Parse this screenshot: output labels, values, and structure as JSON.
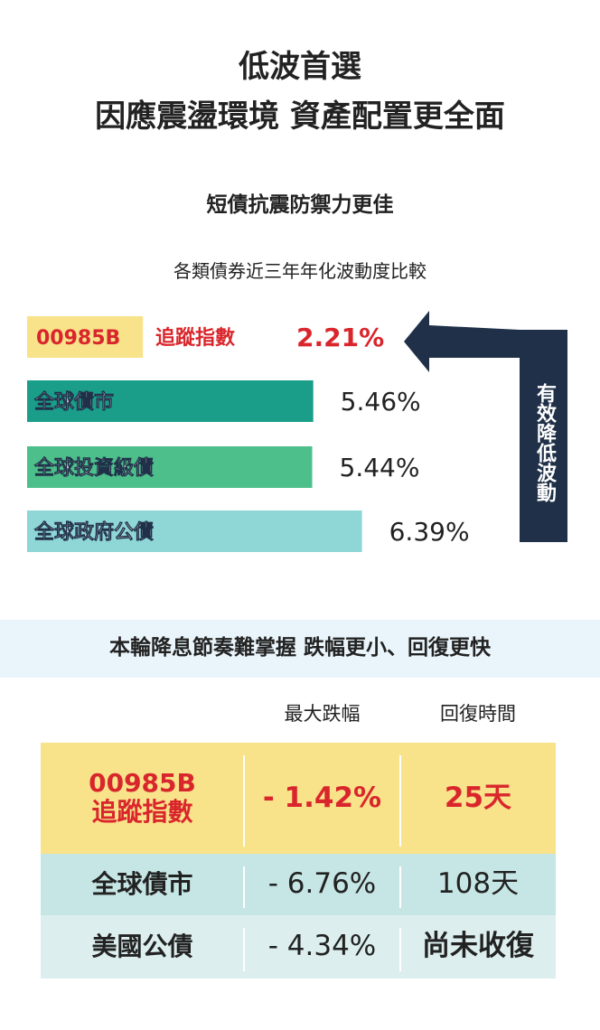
{
  "header": {
    "title_line1": "低波首選",
    "title_line2": "因應震盪環境  資產配置更全面"
  },
  "chart_data": {
    "type": "bar",
    "orientation": "horizontal",
    "title": "短債抗震防禦力更佳",
    "subtitle": "各類債券近三年年化波動度比較",
    "highlight_code": "00985B",
    "categories": [
      "追蹤指數",
      "全球債市",
      "全球投資級債",
      "全球政府公債"
    ],
    "values": [
      2.21,
      5.46,
      5.44,
      6.39
    ],
    "value_labels": [
      "2.21%",
      "5.46%",
      "5.44%",
      "6.39%"
    ],
    "colors": [
      "#f8e28a",
      "#1a9e8a",
      "#4cbf8a",
      "#8fd6d6"
    ],
    "annotation": "有效降低波動"
  },
  "table": {
    "title": "本輪降息節奏難掌握  跌幅更小、回復更快",
    "columns": [
      "最大跌幅",
      "回復時間"
    ],
    "rows": [
      [
        "00985B\n追蹤指數",
        "- 1.42%",
        "25天"
      ],
      [
        "全球債市",
        "- 6.76%",
        "108天"
      ],
      [
        "美國公債",
        "- 4.34%",
        "尚未收復"
      ]
    ]
  }
}
